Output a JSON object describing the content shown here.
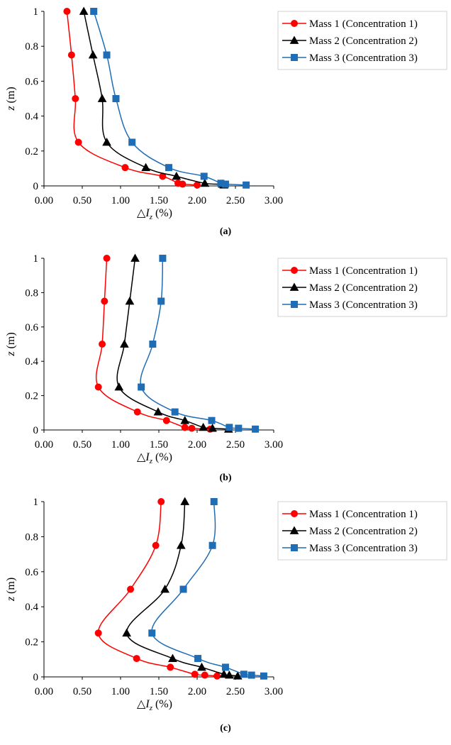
{
  "chart_data": [
    {
      "type": "scatter",
      "panel_label": "a",
      "ylabel": {
        "var": "z",
        "unit": " (m)"
      },
      "xlabel": {
        "prefix": "△",
        "var": "I",
        "sub": "z",
        "unit": " (%)"
      },
      "xlim": [
        0,
        3
      ],
      "ylim": [
        0,
        1
      ],
      "xticks": [
        "0.00",
        "0.50",
        "1.00",
        "1.50",
        "2.00",
        "2.50",
        "3.00"
      ],
      "yticks": [
        "0",
        "0.2",
        "0.4",
        "0.6",
        "0.8",
        "1"
      ],
      "legend_position": "top-right, outside",
      "series": [
        {
          "name": "Mass 1 (Concentration 1)",
          "color": "#ff0000",
          "marker": "circle",
          "x": [
            0.3,
            0.36,
            0.41,
            0.45,
            1.06,
            1.55,
            1.75,
            1.81,
            2.0
          ],
          "y": [
            1.0,
            0.75,
            0.5,
            0.25,
            0.105,
            0.055,
            0.015,
            0.01,
            0.005
          ]
        },
        {
          "name": "Mass 2 (Concentration 2)",
          "color": "#000000",
          "marker": "triangle",
          "x": [
            0.52,
            0.64,
            0.76,
            0.82,
            1.33,
            1.73,
            2.1,
            2.33,
            2.35
          ],
          "y": [
            1.0,
            0.75,
            0.5,
            0.25,
            0.105,
            0.055,
            0.015,
            0.01,
            0.005
          ]
        },
        {
          "name": "Mass 3 (Concentration 3)",
          "color": "#1f6db5",
          "marker": "square",
          "x": [
            0.65,
            0.82,
            0.94,
            1.15,
            1.63,
            2.09,
            2.31,
            2.37,
            2.64
          ],
          "y": [
            1.0,
            0.75,
            0.5,
            0.25,
            0.105,
            0.055,
            0.015,
            0.01,
            0.005
          ]
        }
      ]
    },
    {
      "type": "scatter",
      "panel_label": "b",
      "ylabel": {
        "var": "z",
        "unit": " (m)"
      },
      "xlabel": {
        "prefix": "△",
        "var": "I",
        "sub": "z",
        "unit": " (%)"
      },
      "xlim": [
        0,
        3
      ],
      "ylim": [
        0,
        1
      ],
      "xticks": [
        "0.00",
        "0.50",
        "1.00",
        "1.50",
        "2.00",
        "2.50",
        "3.00"
      ],
      "yticks": [
        "0",
        "0.2",
        "0.4",
        "0.6",
        "0.8",
        "1"
      ],
      "legend_position": "top-right, outside",
      "series": [
        {
          "name": "Mass 1 (Concentration 1)",
          "color": "#ff0000",
          "marker": "circle",
          "x": [
            0.82,
            0.79,
            0.76,
            0.71,
            1.22,
            1.6,
            1.84,
            1.93,
            2.17
          ],
          "y": [
            1.0,
            0.75,
            0.5,
            0.25,
            0.105,
            0.055,
            0.015,
            0.01,
            0.005
          ]
        },
        {
          "name": "Mass 2 (Concentration 2)",
          "color": "#000000",
          "marker": "triangle",
          "x": [
            1.19,
            1.12,
            1.05,
            0.98,
            1.49,
            1.84,
            2.08,
            2.2,
            2.41
          ],
          "y": [
            1.0,
            0.75,
            0.5,
            0.25,
            0.105,
            0.055,
            0.015,
            0.01,
            0.005
          ]
        },
        {
          "name": "Mass 3 (Concentration 3)",
          "color": "#1f6db5",
          "marker": "square",
          "x": [
            1.55,
            1.53,
            1.42,
            1.27,
            1.71,
            2.19,
            2.42,
            2.54,
            2.76
          ],
          "y": [
            1.0,
            0.75,
            0.5,
            0.25,
            0.105,
            0.055,
            0.015,
            0.01,
            0.005
          ]
        }
      ]
    },
    {
      "type": "scatter",
      "panel_label": "c",
      "ylabel": {
        "var": "z",
        "unit": " (m)"
      },
      "xlabel": {
        "prefix": "△",
        "var": "I",
        "sub": "z",
        "unit": " (%)"
      },
      "xlim": [
        0,
        3
      ],
      "ylim": [
        0,
        1
      ],
      "xticks": [
        "0.00",
        "0.50",
        "1.00",
        "1.50",
        "2.00",
        "2.50",
        "3.00"
      ],
      "yticks": [
        "0",
        "0.2",
        "0.4",
        "0.6",
        "0.8",
        "1"
      ],
      "legend_position": "top-right, outside",
      "series": [
        {
          "name": "Mass 1 (Concentration 1)",
          "color": "#ff0000",
          "marker": "circle",
          "x": [
            1.53,
            1.46,
            1.13,
            0.71,
            1.21,
            1.65,
            1.97,
            2.1,
            2.26
          ],
          "y": [
            1.0,
            0.75,
            0.5,
            0.25,
            0.105,
            0.055,
            0.015,
            0.01,
            0.005
          ]
        },
        {
          "name": "Mass 2 (Concentration 2)",
          "color": "#000000",
          "marker": "triangle",
          "x": [
            1.84,
            1.79,
            1.58,
            1.08,
            1.68,
            2.06,
            2.35,
            2.42,
            2.53
          ],
          "y": [
            1.0,
            0.75,
            0.5,
            0.25,
            0.105,
            0.055,
            0.015,
            0.01,
            0.005
          ]
        },
        {
          "name": "Mass 3 (Concentration 3)",
          "color": "#1f6db5",
          "marker": "square",
          "x": [
            2.22,
            2.2,
            1.82,
            1.41,
            2.01,
            2.37,
            2.61,
            2.71,
            2.87
          ],
          "y": [
            1.0,
            0.75,
            0.5,
            0.25,
            0.105,
            0.055,
            0.015,
            0.01,
            0.005
          ]
        }
      ]
    }
  ]
}
